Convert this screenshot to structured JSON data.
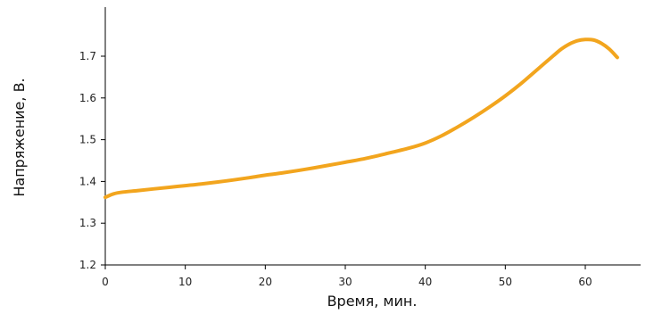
{
  "chart_data": {
    "type": "line",
    "xlabel": "Время, мин.",
    "ylabel": "Напряжение, В.",
    "xlim": [
      0,
      68
    ],
    "ylim": [
      1.2,
      1.8
    ],
    "xticks": [
      "0",
      "10",
      "20",
      "30",
      "40",
      "50",
      "60"
    ],
    "yticks": [
      "1.2",
      "1.3",
      "1.4",
      "1.5",
      "1.6",
      "1.7"
    ],
    "grid": false,
    "series": [
      {
        "color": "#f2a51e",
        "x": [
          0,
          1,
          2,
          4,
          6,
          8,
          10,
          12,
          15,
          18,
          20,
          22,
          25,
          28,
          30,
          32,
          35,
          38,
          40,
          42,
          44,
          46,
          48,
          50,
          52,
          54,
          56,
          57,
          58,
          59,
          60,
          61,
          62,
          63,
          64
        ],
        "y": [
          1.362,
          1.37,
          1.374,
          1.378,
          1.382,
          1.386,
          1.39,
          1.394,
          1.401,
          1.409,
          1.415,
          1.42,
          1.429,
          1.439,
          1.446,
          1.453,
          1.466,
          1.48,
          1.492,
          1.509,
          1.53,
          1.553,
          1.578,
          1.605,
          1.635,
          1.668,
          1.701,
          1.717,
          1.729,
          1.737,
          1.74,
          1.739,
          1.731,
          1.717,
          1.697
        ]
      }
    ]
  }
}
